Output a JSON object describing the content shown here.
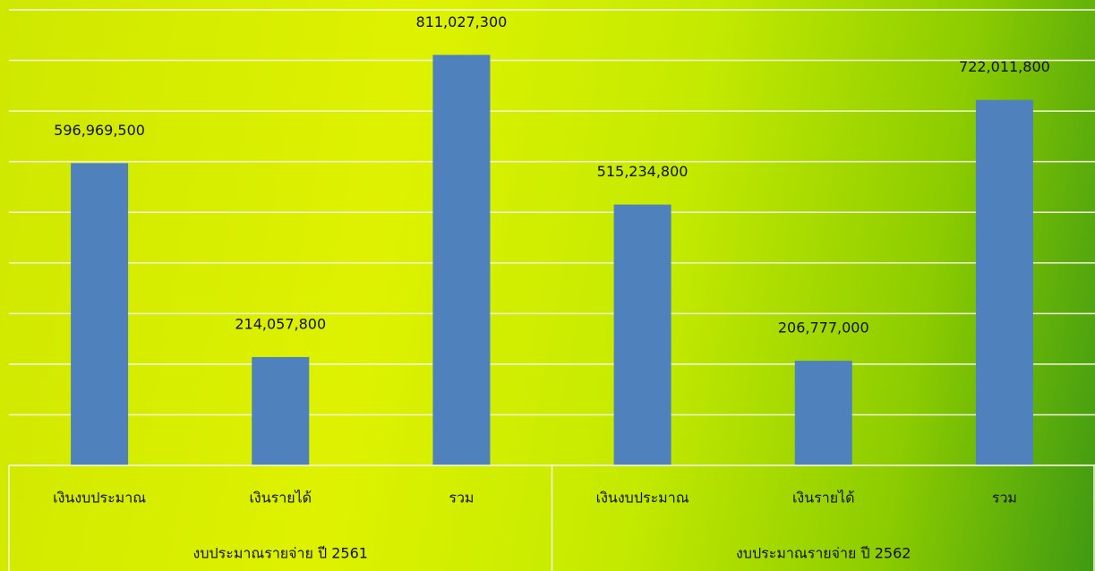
{
  "chart_data": {
    "type": "bar",
    "categories": [
      "เงินงบประมาณ",
      "เงินรายได้",
      "รวม",
      "เงินงบประมาณ",
      "เงินรายได้",
      "รวม"
    ],
    "groups": [
      "งบประมาณรายจ่าย  ปี 2561",
      "งบประมาณรายจ่าย  ปี 2562"
    ],
    "values": [
      596969500,
      214057800,
      811027300,
      515234800,
      206777000,
      722011800
    ],
    "value_labels": [
      "596,969,500",
      "214,057,800",
      "811,027,300",
      "515,234,800",
      "206,777,000",
      "722,011,800"
    ],
    "color": "#4f81bd",
    "ylim": [
      0,
      900000000
    ],
    "yticks": [
      0,
      100000000,
      200000000,
      300000000,
      400000000,
      500000000,
      600000000,
      700000000,
      800000000,
      900000000
    ],
    "grid": true
  }
}
